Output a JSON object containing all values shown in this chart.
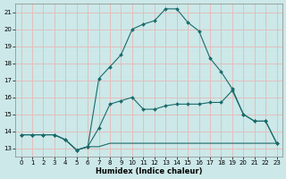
{
  "xlabel": "Humidex (Indice chaleur)",
  "xlim": [
    -0.5,
    23.5
  ],
  "ylim": [
    12.5,
    21.5
  ],
  "yticks": [
    13,
    14,
    15,
    16,
    17,
    18,
    19,
    20,
    21
  ],
  "xticks": [
    0,
    1,
    2,
    3,
    4,
    5,
    6,
    7,
    8,
    9,
    10,
    11,
    12,
    13,
    14,
    15,
    16,
    17,
    18,
    19,
    20,
    21,
    22,
    23
  ],
  "bg_color": "#cce8e8",
  "grid_color": "#e8b8b8",
  "line_color": "#1a6b6b",
  "line1_x": [
    0,
    1,
    2,
    3,
    4,
    5,
    6,
    7,
    8,
    9,
    10,
    11,
    12,
    13,
    14,
    15,
    16,
    17,
    18,
    19,
    20,
    21,
    22,
    23
  ],
  "line1_y": [
    13.8,
    13.8,
    13.8,
    13.8,
    13.5,
    12.9,
    13.1,
    14.2,
    15.6,
    15.8,
    16.0,
    15.3,
    15.3,
    15.5,
    15.6,
    15.6,
    15.6,
    15.7,
    15.7,
    16.4,
    15.0,
    14.6,
    14.6,
    13.3
  ],
  "line2_x": [
    0,
    1,
    2,
    3,
    4,
    5,
    6,
    7,
    8,
    9,
    10,
    11,
    12,
    13,
    14,
    15,
    16,
    17,
    18,
    19,
    20,
    21,
    22,
    23
  ],
  "line2_y": [
    13.8,
    13.8,
    13.8,
    13.8,
    13.5,
    12.9,
    13.1,
    17.1,
    17.8,
    18.5,
    20.0,
    20.3,
    20.5,
    21.2,
    21.2,
    20.4,
    19.9,
    18.3,
    17.5,
    16.5,
    15.0,
    14.6,
    14.6,
    13.3
  ],
  "line3_x": [
    0,
    1,
    2,
    3,
    4,
    5,
    6,
    7,
    8,
    9,
    10,
    11,
    12,
    13,
    14,
    15,
    16,
    17,
    18,
    19,
    20,
    21,
    22,
    23
  ],
  "line3_y": [
    13.8,
    13.8,
    13.8,
    13.8,
    13.5,
    12.9,
    13.1,
    13.1,
    13.3,
    13.3,
    13.3,
    13.3,
    13.3,
    13.3,
    13.3,
    13.3,
    13.3,
    13.3,
    13.3,
    13.3,
    13.3,
    13.3,
    13.3,
    13.3
  ],
  "tick_fontsize": 5.0,
  "xlabel_fontsize": 6.0
}
